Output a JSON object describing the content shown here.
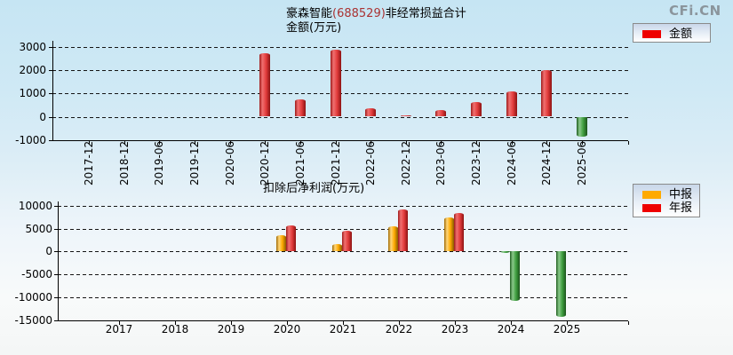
{
  "watermark": "CFi.CN",
  "colors": {
    "amount_red": "#ee0000",
    "interim_orange": "#ffaa00",
    "annual_red": "#ee0000",
    "negative_green": "#3f9e3f",
    "stock_code_red": "#aa3333",
    "watermark_gray": "#8b959c"
  },
  "chart_data": [
    {
      "type": "bar",
      "title_parts": [
        {
          "text": "豪森智能",
          "color": "#000000"
        },
        {
          "text": "(688529)",
          "color": "#aa3333"
        },
        {
          "text": "非经常损益合计",
          "color": "#000000"
        }
      ],
      "subtitle": "金额(万元)",
      "categories": [
        "2017-12",
        "2018-12",
        "2019-06",
        "2019-12",
        "2020-06",
        "2020-12",
        "2021-06",
        "2021-12",
        "2022-06",
        "2022-12",
        "2023-06",
        "2023-12",
        "2024-06",
        "2024-12",
        "2025-06"
      ],
      "series": [
        {
          "name": "金额",
          "color": "#ee0000",
          "values": [
            null,
            null,
            null,
            null,
            null,
            2710,
            750,
            2860,
            360,
            60,
            290,
            615,
            1070,
            2000,
            -850
          ]
        }
      ],
      "ylim": [
        -1000,
        3000
      ],
      "ytick_step": 1000,
      "grid": "horizontal-dashed",
      "x_tick_label_rotation": 90,
      "legend_position": "top-right",
      "negative_color": "#3f9e3f"
    },
    {
      "type": "bar",
      "title": "扣除后净利润(万元)",
      "categories": [
        "2017",
        "2018",
        "2019",
        "2020",
        "2021",
        "2022",
        "2023",
        "2024",
        "2025"
      ],
      "series": [
        {
          "name": "中报",
          "color": "#ffaa00",
          "values": [
            null,
            null,
            null,
            3600,
            1600,
            5500,
            7500,
            -400,
            -14300
          ]
        },
        {
          "name": "年报",
          "color": "#ee0000",
          "values": [
            null,
            null,
            null,
            5700,
            4600,
            9200,
            8300,
            -10700,
            null
          ]
        }
      ],
      "ylim": [
        -15000,
        10000
      ],
      "ytick_step": 5000,
      "grid": "horizontal-dashed",
      "x_tick_label_rotation": 0,
      "legend_position": "right",
      "negative_color": "#3f9e3f"
    }
  ]
}
